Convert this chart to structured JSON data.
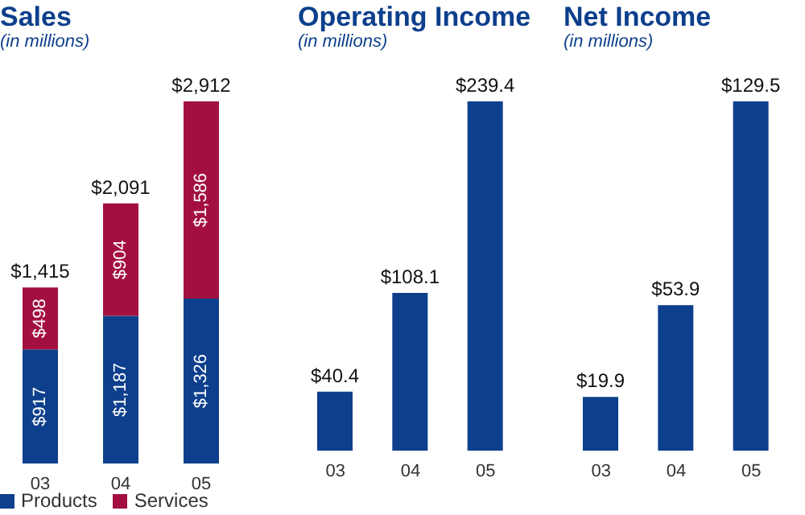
{
  "chart_data": [
    {
      "type": "bar",
      "title": "Sales",
      "subtitle": "(in millions)",
      "categories": [
        "03",
        "04",
        "05"
      ],
      "stacked": true,
      "legend": "bottom",
      "series": [
        {
          "name": "Products",
          "color": "#0d3f8c",
          "values": [
            917,
            1187,
            1326
          ],
          "value_labels": [
            "$917",
            "$1,187",
            "$1,326"
          ]
        },
        {
          "name": "Services",
          "color": "#a3103f",
          "values": [
            498,
            904,
            1586
          ],
          "value_labels": [
            "$498",
            "$904",
            "$1,586"
          ]
        }
      ],
      "totals": [
        "$1,415",
        "$2,091",
        "$2,912"
      ]
    },
    {
      "type": "bar",
      "title": "Operating Income",
      "subtitle": "(in millions)",
      "categories": [
        "03",
        "04",
        "05"
      ],
      "values": [
        40.4,
        108.1,
        239.4
      ],
      "color": "#0d3f8c",
      "value_labels": [
        "$40.4",
        "$108.1",
        "$239.4"
      ]
    },
    {
      "type": "bar",
      "title": "Net Income",
      "subtitle": "(in millions)",
      "categories": [
        "03",
        "04",
        "05"
      ],
      "values": [
        19.9,
        53.9,
        129.5
      ],
      "color": "#0d3f8c",
      "value_labels": [
        "$19.9",
        "$53.9",
        "$129.5"
      ]
    }
  ]
}
